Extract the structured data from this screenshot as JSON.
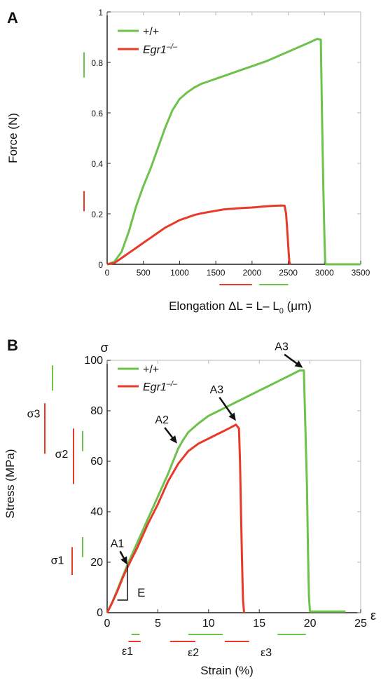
{
  "colors": {
    "wildtype": "#6cc24a",
    "knockout": "#e8392a",
    "axis": "#222222",
    "grid": "#b9b9b9",
    "arrow": "#111111"
  },
  "chart_data": [
    {
      "panel_label": "A",
      "type": "line",
      "xlabel": "Elongation ΔL = L– L",
      "xlabel_sub": "0",
      "xlabel_unit": " (μm)",
      "ylabel": "Force (N)",
      "xlim": [
        0,
        3500
      ],
      "ylim": [
        0,
        1
      ],
      "xticks": [
        0,
        500,
        1000,
        1500,
        2000,
        2500,
        3000,
        3500
      ],
      "yticks": [
        0,
        0.2,
        0.4,
        0.6,
        0.8,
        1
      ],
      "ytick_labels": [
        "0",
        "0.2",
        "0.4",
        "0.6",
        "0.8",
        "1"
      ],
      "grid": "frame",
      "legend": "top-left",
      "series": [
        {
          "name": "+/+",
          "color_key": "wildtype",
          "points": [
            [
              0,
              0
            ],
            [
              100,
              0.01
            ],
            [
              200,
              0.05
            ],
            [
              300,
              0.13
            ],
            [
              400,
              0.23
            ],
            [
              500,
              0.31
            ],
            [
              600,
              0.38
            ],
            [
              700,
              0.46
            ],
            [
              800,
              0.54
            ],
            [
              900,
              0.61
            ],
            [
              1000,
              0.655
            ],
            [
              1100,
              0.68
            ],
            [
              1200,
              0.7
            ],
            [
              1300,
              0.715
            ],
            [
              1400,
              0.725
            ],
            [
              1500,
              0.735
            ],
            [
              1600,
              0.745
            ],
            [
              1800,
              0.765
            ],
            [
              2000,
              0.785
            ],
            [
              2200,
              0.805
            ],
            [
              2400,
              0.83
            ],
            [
              2600,
              0.855
            ],
            [
              2800,
              0.88
            ],
            [
              2900,
              0.893
            ],
            [
              2950,
              0.89
            ],
            [
              2965,
              0.6
            ],
            [
              2985,
              0.3
            ],
            [
              3000,
              0.1
            ],
            [
              3010,
              0.01
            ],
            [
              3020,
              0
            ],
            [
              3500,
              0
            ]
          ]
        },
        {
          "name": "Egr1",
          "name_sup": "–/–",
          "color_key": "knockout",
          "points": [
            [
              0,
              0
            ],
            [
              100,
              0.005
            ],
            [
              200,
              0.025
            ],
            [
              300,
              0.045
            ],
            [
              400,
              0.065
            ],
            [
              500,
              0.085
            ],
            [
              600,
              0.105
            ],
            [
              700,
              0.125
            ],
            [
              800,
              0.145
            ],
            [
              900,
              0.16
            ],
            [
              1000,
              0.175
            ],
            [
              1100,
              0.185
            ],
            [
              1200,
              0.195
            ],
            [
              1300,
              0.202
            ],
            [
              1400,
              0.207
            ],
            [
              1500,
              0.212
            ],
            [
              1600,
              0.217
            ],
            [
              1800,
              0.222
            ],
            [
              2000,
              0.225
            ],
            [
              2200,
              0.23
            ],
            [
              2400,
              0.233
            ],
            [
              2450,
              0.232
            ],
            [
              2470,
              0.2
            ],
            [
              2490,
              0.12
            ],
            [
              2505,
              0.05
            ],
            [
              2515,
              0.01
            ],
            [
              2525,
              0
            ]
          ]
        }
      ],
      "error_bars": {
        "y_green": [
          0.74,
          0.84
        ],
        "y_red": [
          0.21,
          0.29
        ],
        "x_red": [
          1550,
          2000
        ],
        "x_green": [
          2100,
          2500
        ]
      }
    },
    {
      "panel_label": "B",
      "type": "line",
      "xlabel": "Strain (%)",
      "ylabel": "Stress (MPa)",
      "x_axis_symbol": "ε",
      "y_axis_symbol": "σ",
      "xlim": [
        0,
        25
      ],
      "ylim": [
        0,
        100
      ],
      "xticks": [
        0,
        5,
        10,
        15,
        20,
        25
      ],
      "yticks": [
        0,
        20,
        40,
        60,
        80,
        100
      ],
      "grid": "frame",
      "legend": "top-left",
      "series": [
        {
          "name": "+/+",
          "color_key": "wildtype",
          "points": [
            [
              0,
              0
            ],
            [
              0.5,
              4
            ],
            [
              1,
              9
            ],
            [
              1.5,
              14
            ],
            [
              2,
              19
            ],
            [
              3,
              28
            ],
            [
              4,
              37
            ],
            [
              5,
              46
            ],
            [
              6,
              55
            ],
            [
              6.5,
              60
            ],
            [
              7,
              65
            ],
            [
              7.5,
              68.5
            ],
            [
              8,
              71.5
            ],
            [
              9,
              75
            ],
            [
              10,
              78
            ],
            [
              11,
              80
            ],
            [
              12,
              82
            ],
            [
              13,
              84
            ],
            [
              14,
              86
            ],
            [
              15,
              88
            ],
            [
              16,
              90
            ],
            [
              17,
              92
            ],
            [
              18,
              94
            ],
            [
              19,
              96
            ],
            [
              19.4,
              96
            ],
            [
              19.5,
              80
            ],
            [
              19.7,
              50
            ],
            [
              19.8,
              25
            ],
            [
              19.9,
              6
            ],
            [
              20,
              0.5
            ],
            [
              23.5,
              0.5
            ]
          ]
        },
        {
          "name": "Egr1",
          "name_sup": "–/–",
          "color_key": "knockout",
          "points": [
            [
              0,
              0
            ],
            [
              0.5,
              4
            ],
            [
              1,
              8.5
            ],
            [
              1.5,
              13.5
            ],
            [
              2,
              18
            ],
            [
              3,
              26
            ],
            [
              4,
              35
            ],
            [
              5,
              43
            ],
            [
              6,
              52
            ],
            [
              7,
              59
            ],
            [
              8,
              64
            ],
            [
              9,
              67
            ],
            [
              10,
              69
            ],
            [
              11,
              71
            ],
            [
              12,
              73
            ],
            [
              12.7,
              74.5
            ],
            [
              13,
              73
            ],
            [
              13.1,
              60
            ],
            [
              13.2,
              40
            ],
            [
              13.3,
              20
            ],
            [
              13.4,
              5
            ],
            [
              13.5,
              0
            ]
          ]
        }
      ],
      "annotations": [
        {
          "text": "A1",
          "text_xy": [
            1.0,
            26
          ],
          "arrow_to": [
            2.0,
            19
          ]
        },
        {
          "text": "A2",
          "text_xy": [
            5.4,
            75
          ],
          "arrow_to": [
            6.9,
            67
          ]
        },
        {
          "text": "A3",
          "text_xy": [
            10.8,
            87
          ],
          "arrow_to": [
            12.7,
            76
          ]
        },
        {
          "text": "A3",
          "text_xy": [
            17.2,
            104
          ],
          "arrow_to": [
            19.3,
            97
          ]
        },
        {
          "text": "E",
          "text_xy": [
            2.7,
            8
          ],
          "modulus_box": [
            [
              1,
              5
            ],
            [
              2,
              19
            ]
          ]
        }
      ],
      "y_markers": [
        {
          "text": "σ3",
          "text_value": 79
        },
        {
          "text": "σ2",
          "text_value": 63
        },
        {
          "text": "σ1",
          "text_value": 21
        }
      ],
      "x_markers": [
        {
          "text": "ε1",
          "text_value": 2
        },
        {
          "text": "ε2",
          "text_value": 8.5
        },
        {
          "text": "ε3",
          "text_value": 15
        }
      ],
      "error_bars": {
        "y_green": [
          [
            88,
            98
          ],
          [
            64,
            72
          ],
          [
            22,
            30
          ]
        ],
        "y_red": [
          [
            63,
            83
          ],
          [
            51,
            73
          ],
          [
            15,
            26
          ]
        ],
        "x_green": [
          [
            2.4,
            3.2
          ],
          [
            8.0,
            11.4
          ],
          [
            16.8,
            19.6
          ]
        ],
        "x_red": [
          [
            2.1,
            3.3
          ],
          [
            6.2,
            8.7
          ],
          [
            11.6,
            14.0
          ]
        ]
      }
    }
  ]
}
